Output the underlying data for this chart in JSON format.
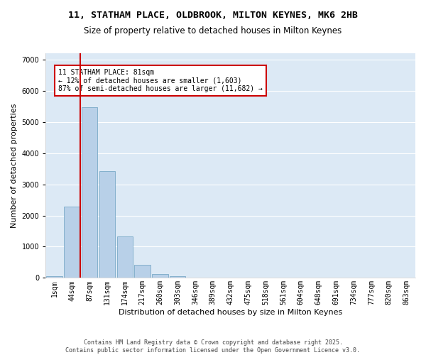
{
  "title_line1": "11, STATHAM PLACE, OLDBROOK, MILTON KEYNES, MK6 2HB",
  "title_line2": "Size of property relative to detached houses in Milton Keynes",
  "xlabel": "Distribution of detached houses by size in Milton Keynes",
  "ylabel": "Number of detached properties",
  "footnote": "Contains HM Land Registry data © Crown copyright and database right 2025.\nContains public sector information licensed under the Open Government Licence v3.0.",
  "bar_labels": [
    "1sqm",
    "44sqm",
    "87sqm",
    "131sqm",
    "174sqm",
    "217sqm",
    "260sqm",
    "303sqm",
    "346sqm",
    "389sqm",
    "432sqm",
    "475sqm",
    "518sqm",
    "561sqm",
    "604sqm",
    "648sqm",
    "691sqm",
    "734sqm",
    "777sqm",
    "820sqm",
    "863sqm"
  ],
  "bar_values": [
    50,
    2280,
    5480,
    3420,
    1340,
    430,
    130,
    50,
    0,
    0,
    0,
    0,
    0,
    0,
    0,
    0,
    0,
    0,
    0,
    0,
    0
  ],
  "bar_color": "#b8d0e8",
  "bar_edge_color": "#6a9fc0",
  "vline_color": "#cc0000",
  "annotation_box_text": "11 STATHAM PLACE: 81sqm\n← 12% of detached houses are smaller (1,603)\n87% of semi-detached houses are larger (11,682) →",
  "annotation_box_color": "#cc0000",
  "ylim": [
    0,
    7200
  ],
  "fig_bg_color": "#ffffff",
  "plot_bg_color": "#dce9f5",
  "grid_color": "#ffffff",
  "title_fontsize": 9.5,
  "subtitle_fontsize": 8.5,
  "axis_label_fontsize": 8,
  "tick_fontsize": 7,
  "annot_fontsize": 7,
  "footnote_fontsize": 6
}
